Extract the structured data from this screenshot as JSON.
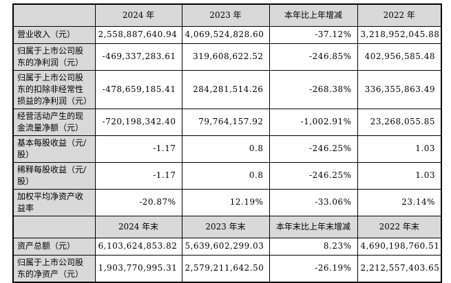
{
  "colors": {
    "header_bg": "#d9d9d9",
    "label_bg": "#d9d9d9",
    "border": "#000000",
    "cell_bg": "#ffffff",
    "text": "#000000"
  },
  "table": {
    "annual_header": {
      "label": "",
      "c1": "2024 年",
      "c2": "2023 年",
      "c3": "本年比上年增减",
      "c4": "2022 年"
    },
    "annual_rows": [
      {
        "label": "营业收入（元）",
        "v1": "2,558,887,640.94",
        "v2": "4,069,524,828.60",
        "v3": "-37.12%",
        "v4": "3,218,952,045.88"
      },
      {
        "label": "归属于上市公司股东的净利润（元）",
        "v1": "-469,337,283.61",
        "v2": "319,608,622.52",
        "v3": "-246.85%",
        "v4": "402,956,585.48"
      },
      {
        "label": "归属于上市公司股东的扣除非经常性损益的净利润（元）",
        "v1": "-478,659,185.41",
        "v2": "284,281,514.26",
        "v3": "-268.38%",
        "v4": "336,355,863.49"
      },
      {
        "label": "经营活动产生的现金流量净额（元）",
        "v1": "-720,198,342.40",
        "v2": "79,764,157.92",
        "v3": "-1,002.91%",
        "v4": "23,268,055.85"
      },
      {
        "label": "基本每股收益（元/股）",
        "v1": "-1.17",
        "v2": "0.8",
        "v3": "-246.25%",
        "v4": "1.03"
      },
      {
        "label": "稀释每股收益（元/股）",
        "v1": "-1.17",
        "v2": "0.8",
        "v3": "-246.25%",
        "v4": "1.03"
      },
      {
        "label": "加权平均净资产收益率",
        "v1": "-20.87%",
        "v2": "12.19%",
        "v3": "-33.06%",
        "v4": "23.14%"
      }
    ],
    "yearend_header": {
      "label": "",
      "c1": "2024 年末",
      "c2": "2023 年末",
      "c3": "本年末比上年末增减",
      "c4": "2022 年末"
    },
    "yearend_rows": [
      {
        "label": "资产总额（元）",
        "v1": "6,103,624,853.82",
        "v2": "5,639,602,299.03",
        "v3": "8.23%",
        "v4": "4,690,198,760.51"
      },
      {
        "label": "归属于上市公司股东的净资产（元）",
        "v1": "1,903,770,995.31",
        "v2": "2,579,211,642.50",
        "v3": "-26.19%",
        "v4": "2,212,557,403.65"
      }
    ]
  }
}
